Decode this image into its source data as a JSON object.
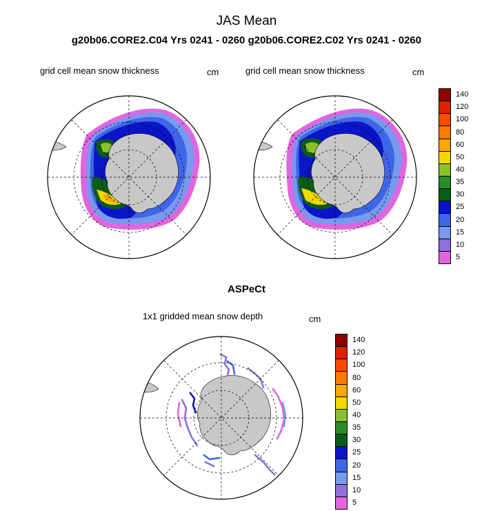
{
  "title": "JAS Mean",
  "subtitle": "g20b06.CORE2.C04  Yrs 0241 - 0260 g20b06.CORE2.C02  Yrs 0241 - 0260",
  "panels": [
    {
      "title": "grid cell mean snow thickness",
      "units": "cm"
    },
    {
      "title": "grid cell mean snow thickness",
      "units": "cm"
    }
  ],
  "obs": {
    "heading": "ASPeCt",
    "title": "1x1 gridded mean snow depth",
    "units": "cm"
  },
  "legend": {
    "levels": [
      "5",
      "10",
      "15",
      "20",
      "25",
      "30",
      "35",
      "40",
      "50",
      "60",
      "80",
      "100",
      "120",
      "140"
    ],
    "colors": [
      "#e066e0",
      "#8f6fd8",
      "#7799ee",
      "#3f66e6",
      "#0a15c8",
      "#0c5c18",
      "#2a8c2a",
      "#8cbf2e",
      "#f0d800",
      "#ffa600",
      "#ff7a00",
      "#ff4a00",
      "#dd2200",
      "#8b0000"
    ]
  }
}
